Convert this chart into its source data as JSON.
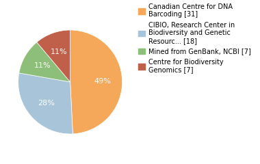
{
  "labels": [
    "Canadian Centre for DNA\nBarcoding [31]",
    "CIBIO, Research Center in\nBiodiversity and Genetic\nResourc... [18]",
    "Mined from GenBank, NCBI [7]",
    "Centre for Biodiversity\nGenomics [7]"
  ],
  "values": [
    31,
    18,
    7,
    7
  ],
  "percentages": [
    "49%",
    "28%",
    "11%",
    "11%"
  ],
  "colors": [
    "#F5A85A",
    "#A8C4D8",
    "#8DBF7A",
    "#C0604A"
  ],
  "background_color": "#ffffff",
  "text_color": "#ffffff",
  "fontsize_pct": 8,
  "fontsize_legend": 7.0,
  "startangle": 90
}
